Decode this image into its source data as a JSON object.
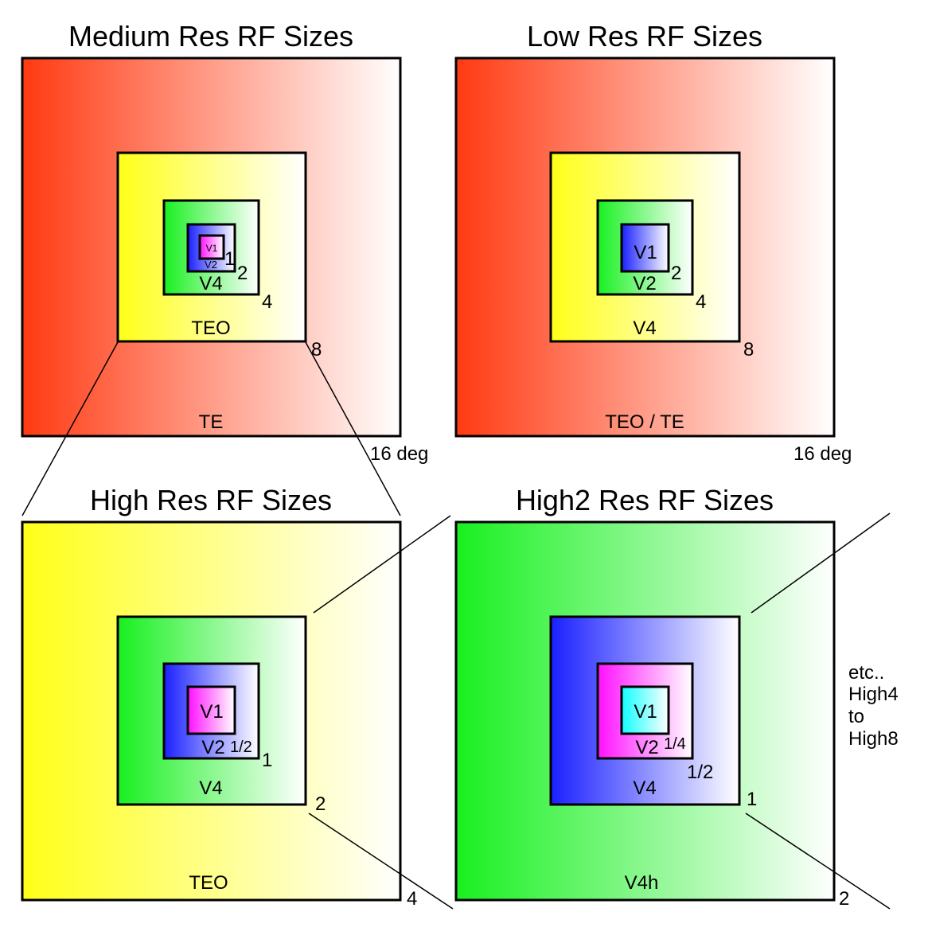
{
  "colors": {
    "red": "#ff3a12",
    "yellow": "#ffff18",
    "green": "#18f020",
    "blue": "#1a20ff",
    "magenta": "#ff10ff",
    "cyan": "#10ffff",
    "white": "#ffffff",
    "outline": "#000000"
  },
  "panels": [
    {
      "title": "Medium Res RF Sizes",
      "labels": {
        "l0": "TE",
        "l1": "TEO",
        "l2": "V4",
        "l3": "V2",
        "l4": "V1"
      },
      "sizes": {
        "s0": "16 deg",
        "s1": "8",
        "s2": "4",
        "s3": "2",
        "s4": "1"
      }
    },
    {
      "title": "Low Res RF Sizes",
      "labels": {
        "l0": "TEO / TE",
        "l1": "V4",
        "l2": "V2",
        "l3": "V1"
      },
      "sizes": {
        "s0": "16 deg",
        "s1": "8",
        "s2": "4",
        "s3": "2"
      }
    },
    {
      "title": "High Res RF Sizes",
      "labels": {
        "l0": "TEO",
        "l1": "V4",
        "l2": "V2",
        "l3": "V1"
      },
      "sizes": {
        "s0": "4",
        "s1": "2",
        "s2": "1",
        "s3": "1/2"
      }
    },
    {
      "title": "High2 Res RF Sizes",
      "labels": {
        "l0": "V4h",
        "l1": "V4",
        "l2": "V2",
        "l3": "V1"
      },
      "sizes": {
        "s0": "2",
        "s1": "1",
        "s2": "1/2",
        "s3": "1/4"
      }
    }
  ],
  "note": [
    "etc..",
    "High4",
    "to",
    "High8"
  ]
}
